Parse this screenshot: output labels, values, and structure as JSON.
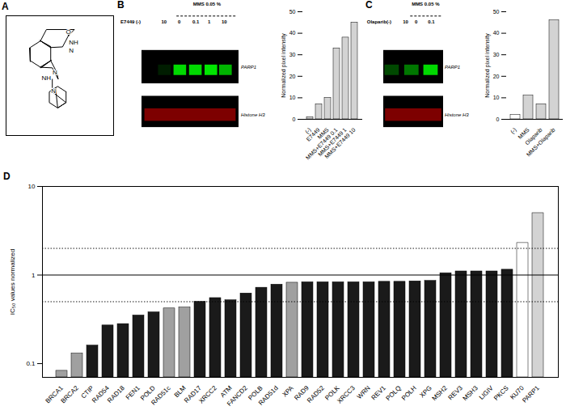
{
  "chart_data": [
    {
      "type": "structure",
      "title": "A",
      "annotations": [
        "O",
        "NH",
        "N",
        "N",
        "NH",
        "N"
      ]
    },
    {
      "type": "blot",
      "title": "B",
      "annotations": [
        "E7449 (-)",
        "10",
        "MMS 0.05 %",
        "0",
        "0.1",
        "1",
        "10",
        "PARP1",
        "Histone H3"
      ]
    },
    {
      "type": "bar",
      "categories": [
        "(-)",
        "E7449",
        "MMS",
        "MMS+E7449 0.1",
        "MMS+E7449 1",
        "MMS+E7449 10"
      ],
      "values": [
        1,
        7,
        10,
        33,
        38,
        45
      ],
      "color": "#d3d3d3",
      "ylabel": "Normalized pixel intensity",
      "ylim": [
        0,
        50
      ],
      "yticks": [
        0,
        10,
        20,
        30,
        40,
        50
      ]
    },
    {
      "type": "blot",
      "title": "C",
      "annotations": [
        "Olaparib(-)",
        "10",
        "MMS 0.05 %",
        "0",
        "0.1",
        "PARP1",
        "Histone H3"
      ]
    },
    {
      "type": "bar",
      "categories": [
        "(-)",
        "MMS",
        "Olaparib",
        "MMS+Olaparib"
      ],
      "values": [
        2,
        11,
        7,
        46
      ],
      "colors": [
        "#ffffff",
        "#d3d3d3",
        "#d3d3d3",
        "#d3d3d3"
      ],
      "ylabel": "Normalized pixel intensity",
      "ylim": [
        0,
        50
      ],
      "yticks": [
        0,
        10,
        20,
        30,
        40,
        50
      ]
    },
    {
      "type": "bar",
      "title": "D",
      "categories": [
        "BRCA1",
        "BRCA2",
        "CTIP",
        "RAD54",
        "RAD18",
        "FEN1",
        "POLD",
        "RAD51c",
        "BLM",
        "RAD17",
        "XRCC2",
        "ATM",
        "FANCD2",
        "POLB",
        "RAD51d",
        "XPA",
        "RAD9",
        "RAD52",
        "POLK",
        "XRCC3",
        "WRN",
        "REV1",
        "POLQ",
        "POLH",
        "XPG",
        "MSH2",
        "REV3",
        "MSH3",
        "LIGIV",
        "PKCS",
        "KU70",
        "PARP1"
      ],
      "values": [
        0.083,
        0.13,
        0.16,
        0.27,
        0.28,
        0.35,
        0.38,
        0.42,
        0.43,
        0.5,
        0.55,
        0.52,
        0.62,
        0.72,
        0.78,
        0.82,
        0.83,
        0.83,
        0.83,
        0.83,
        0.83,
        0.84,
        0.84,
        0.85,
        0.86,
        1.05,
        1.1,
        1.1,
        1.1,
        1.15,
        2.3,
        5.0
      ],
      "colors": [
        "#a0a0a0",
        "#a0a0a0",
        "#1a1a1a",
        "#1a1a1a",
        "#1a1a1a",
        "#1a1a1a",
        "#1a1a1a",
        "#a0a0a0",
        "#a0a0a0",
        "#1a1a1a",
        "#1a1a1a",
        "#1a1a1a",
        "#1a1a1a",
        "#1a1a1a",
        "#1a1a1a",
        "#a0a0a0",
        "#1a1a1a",
        "#1a1a1a",
        "#1a1a1a",
        "#1a1a1a",
        "#1a1a1a",
        "#1a1a1a",
        "#1a1a1a",
        "#1a1a1a",
        "#1a1a1a",
        "#1a1a1a",
        "#1a1a1a",
        "#1a1a1a",
        "#1a1a1a",
        "#1a1a1a",
        "#ffffff",
        "#d3d3d3"
      ],
      "ylabel": "IC₅₀ values normalized",
      "log": "y",
      "ylim": [
        0.07,
        10
      ],
      "yticks": [
        0.1,
        1,
        10
      ],
      "reference_lines": [
        {
          "value": 1.0,
          "line_style": "solid"
        },
        {
          "value": 2.0,
          "line_style": "dotted"
        },
        {
          "value": 0.5,
          "line_style": "dotted"
        }
      ]
    }
  ]
}
